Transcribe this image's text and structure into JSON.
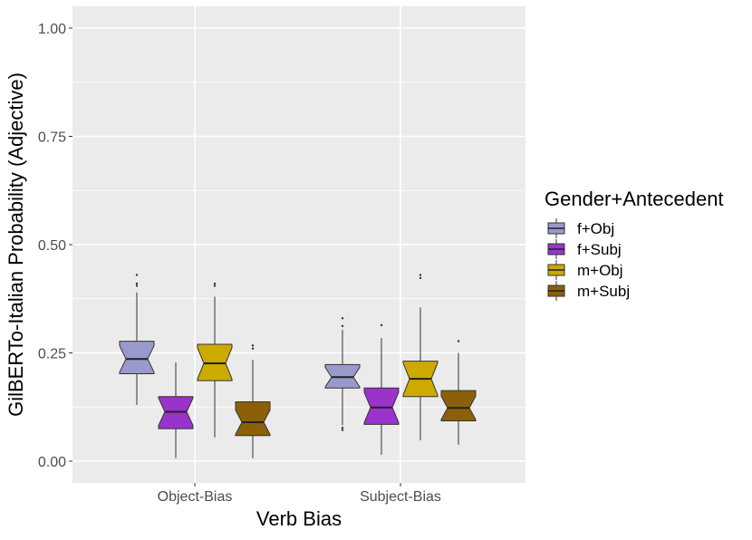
{
  "chart_data": {
    "type": "boxplot",
    "xlabel": "Verb Bias",
    "ylabel": "GilBERTo-Italian Probability (Adjective)",
    "ylim": [
      -0.05,
      1.05
    ],
    "yticks": [
      0.0,
      0.25,
      0.5,
      0.75,
      1.0
    ],
    "ytick_labels": [
      "0.00",
      "0.25",
      "0.50",
      "0.75",
      "1.00"
    ],
    "categories": [
      "Object-Bias",
      "Subject-Bias"
    ],
    "grid": true,
    "notched": true,
    "legend": {
      "title": "Gender+Antecedent",
      "placement": "right"
    },
    "series": [
      {
        "name": "f+Obj",
        "color": "#9999cc",
        "boxes": [
          {
            "q1": 0.202,
            "median": 0.236,
            "q3": 0.277,
            "whisker_low": 0.13,
            "whisker_high": 0.39,
            "outliers": [
              0.405,
              0.41,
              0.43
            ]
          },
          {
            "q1": 0.169,
            "median": 0.194,
            "q3": 0.223,
            "whisker_low": 0.083,
            "whisker_high": 0.303,
            "outliers": [
              0.072,
              0.077,
              0.312,
              0.33
            ]
          }
        ]
      },
      {
        "name": "f+Subj",
        "color": "#9933cc",
        "boxes": [
          {
            "q1": 0.075,
            "median": 0.114,
            "q3": 0.149,
            "whisker_low": 0.007,
            "whisker_high": 0.228,
            "outliers": []
          },
          {
            "q1": 0.085,
            "median": 0.124,
            "q3": 0.169,
            "whisker_low": 0.015,
            "whisker_high": 0.284,
            "outliers": [
              0.314
            ]
          }
        ]
      },
      {
        "name": "m+Obj",
        "color": "#ccaa00",
        "boxes": [
          {
            "q1": 0.186,
            "median": 0.226,
            "q3": 0.27,
            "whisker_low": 0.055,
            "whisker_high": 0.38,
            "outliers": [
              0.405,
              0.41
            ]
          },
          {
            "q1": 0.149,
            "median": 0.19,
            "q3": 0.231,
            "whisker_low": 0.048,
            "whisker_high": 0.355,
            "outliers": [
              0.423,
              0.43
            ]
          }
        ]
      },
      {
        "name": "m+Subj",
        "color": "#8b6008",
        "boxes": [
          {
            "q1": 0.059,
            "median": 0.09,
            "q3": 0.137,
            "whisker_low": 0.007,
            "whisker_high": 0.234,
            "outliers": [
              0.26,
              0.267
            ]
          },
          {
            "q1": 0.093,
            "median": 0.123,
            "q3": 0.163,
            "whisker_low": 0.038,
            "whisker_high": 0.25,
            "outliers": [
              0.277
            ]
          }
        ]
      }
    ]
  }
}
